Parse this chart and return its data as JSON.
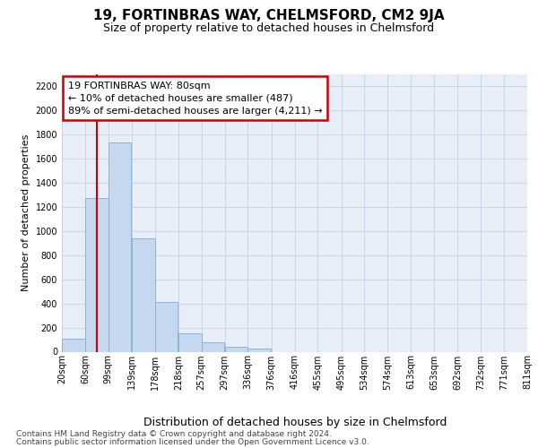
{
  "title1": "19, FORTINBRAS WAY, CHELMSFORD, CM2 9JA",
  "title2": "Size of property relative to detached houses in Chelmsford",
  "xlabel": "Distribution of detached houses by size in Chelmsford",
  "ylabel": "Number of detached properties",
  "footer1": "Contains HM Land Registry data © Crown copyright and database right 2024.",
  "footer2": "Contains public sector information licensed under the Open Government Licence v3.0.",
  "bar_left_edges": [
    20,
    60,
    99,
    139,
    178,
    218,
    257,
    297,
    336,
    376,
    416,
    455,
    495,
    534,
    574,
    613,
    653,
    692,
    732,
    771
  ],
  "bar_heights": [
    110,
    1270,
    1730,
    940,
    415,
    150,
    75,
    38,
    25,
    0,
    0,
    0,
    0,
    0,
    0,
    0,
    0,
    0,
    0,
    0
  ],
  "bin_width": 39,
  "bar_color": "#c5d8f0",
  "bar_edge_color": "#8ab4d8",
  "grid_color": "#c8d4e8",
  "background_color": "#e8eef8",
  "property_line_x": 80,
  "property_line_color": "#cc0000",
  "annotation_line1": "19 FORTINBRAS WAY: 80sqm",
  "annotation_line2": "← 10% of detached houses are smaller (487)",
  "annotation_line3": "89% of semi-detached houses are larger (4,211) →",
  "annotation_box_edgecolor": "#cc0000",
  "ylim_max": 2300,
  "yticks": [
    0,
    200,
    400,
    600,
    800,
    1000,
    1200,
    1400,
    1600,
    1800,
    2000,
    2200
  ],
  "xtick_labels": [
    "20sqm",
    "60sqm",
    "99sqm",
    "139sqm",
    "178sqm",
    "218sqm",
    "257sqm",
    "297sqm",
    "336sqm",
    "376sqm",
    "416sqm",
    "455sqm",
    "495sqm",
    "534sqm",
    "574sqm",
    "613sqm",
    "653sqm",
    "692sqm",
    "732sqm",
    "771sqm",
    "811sqm"
  ],
  "xtick_positions": [
    20,
    60,
    99,
    139,
    178,
    218,
    257,
    297,
    336,
    376,
    416,
    455,
    495,
    534,
    574,
    613,
    653,
    692,
    732,
    771,
    811
  ],
  "title1_fontsize": 11,
  "title2_fontsize": 9,
  "xlabel_fontsize": 9,
  "ylabel_fontsize": 8,
  "tick_fontsize": 7,
  "annotation_fontsize": 8,
  "footer_fontsize": 6.5
}
